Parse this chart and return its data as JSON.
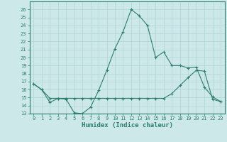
{
  "xlabel": "Humidex (Indice chaleur)",
  "line1_x": [
    0,
    1,
    2,
    3,
    4,
    5,
    6,
    7,
    8,
    9,
    10,
    11,
    12,
    13,
    14,
    15,
    16,
    17,
    18,
    19,
    20,
    21,
    22,
    23
  ],
  "line1_y": [
    16.7,
    16.0,
    14.4,
    14.9,
    14.8,
    13.1,
    13.0,
    13.8,
    15.9,
    18.4,
    21.1,
    23.2,
    26.0,
    25.2,
    24.0,
    20.0,
    20.7,
    19.0,
    19.0,
    18.7,
    18.8,
    16.3,
    15.1,
    14.5
  ],
  "line2_x": [
    0,
    1,
    2,
    3,
    4,
    5,
    6,
    7,
    8,
    9,
    10,
    11,
    12,
    13,
    14,
    15,
    16,
    17,
    18,
    19,
    20,
    21,
    22,
    23
  ],
  "line2_y": [
    16.7,
    16.0,
    14.9,
    14.9,
    14.9,
    14.9,
    14.9,
    14.9,
    14.9,
    14.9,
    14.9,
    14.9,
    14.9,
    14.9,
    14.9,
    14.9,
    14.9,
    15.5,
    16.5,
    17.5,
    18.4,
    18.3,
    14.8,
    14.5
  ],
  "line_color": "#2d7d6e",
  "bg_color": "#cce8e8",
  "grid_color": "#b0d4d4",
  "ylim": [
    13,
    27
  ],
  "xlim": [
    -0.5,
    23.5
  ],
  "yticks": [
    13,
    14,
    15,
    16,
    17,
    18,
    19,
    20,
    21,
    22,
    23,
    24,
    25,
    26
  ],
  "xticks": [
    0,
    1,
    2,
    3,
    4,
    5,
    6,
    7,
    8,
    9,
    10,
    11,
    12,
    13,
    14,
    15,
    16,
    17,
    18,
    19,
    20,
    21,
    22,
    23
  ]
}
